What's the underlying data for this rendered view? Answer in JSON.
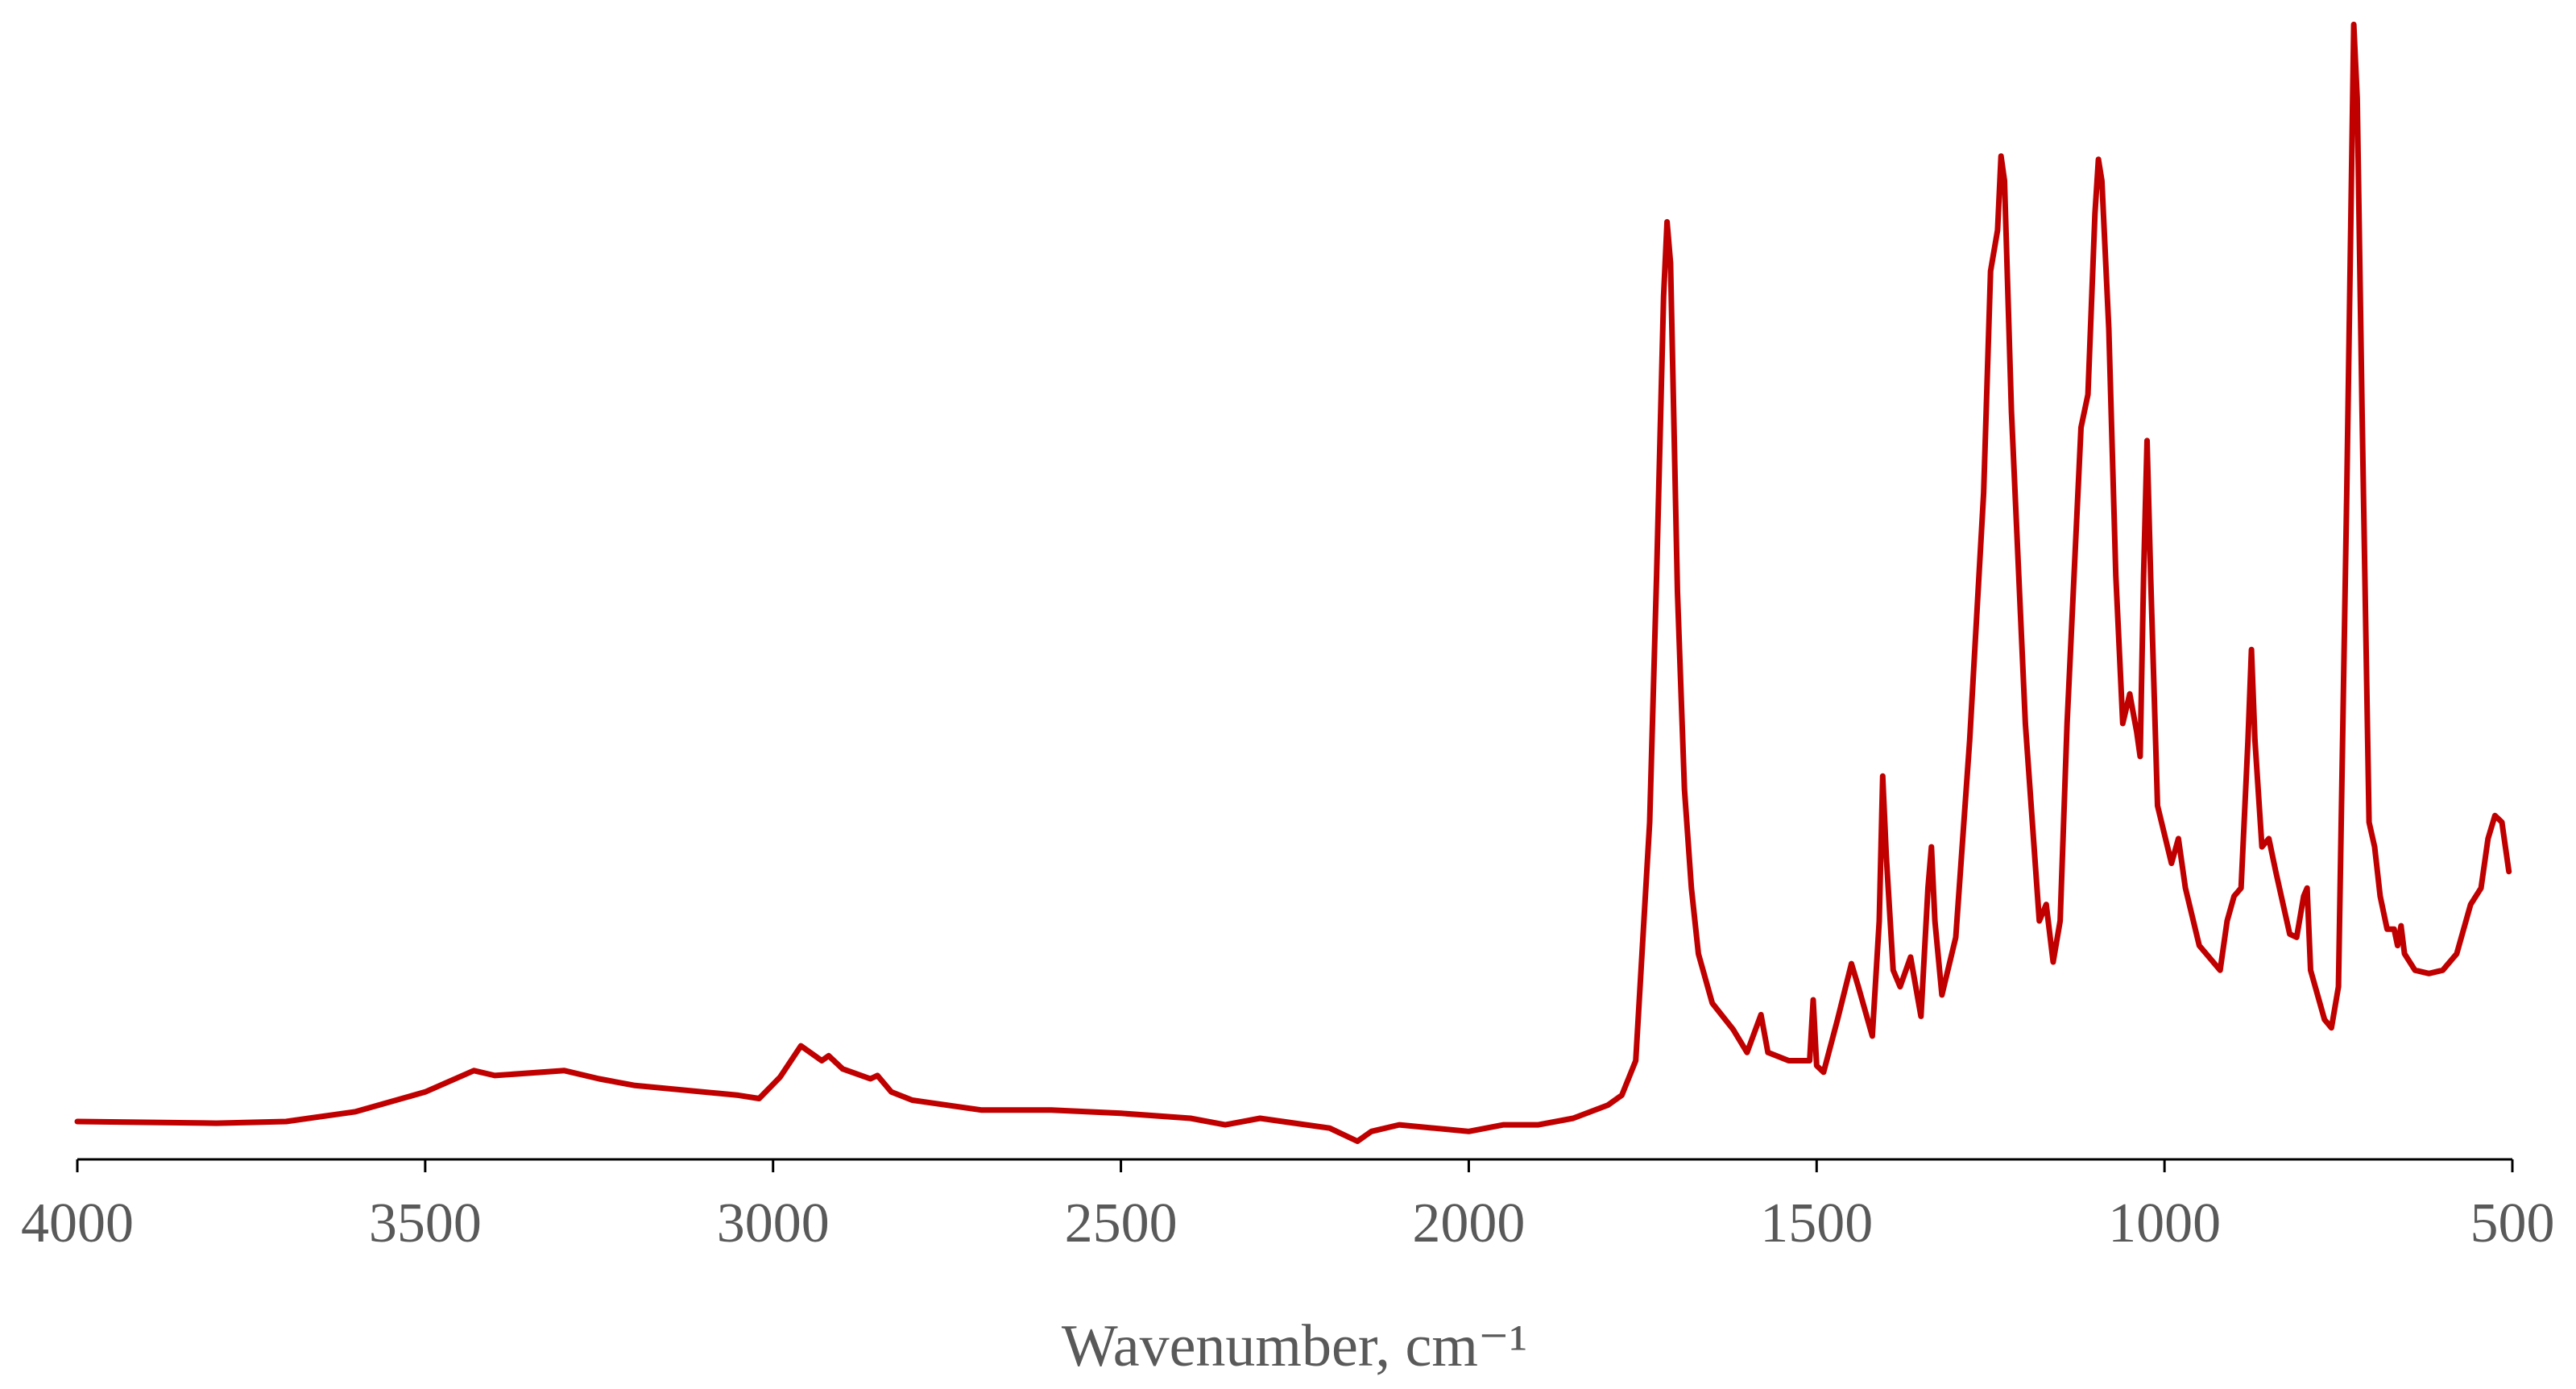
{
  "chart_data": {
    "type": "line",
    "x_label": "Wavenumber, cm⁻¹",
    "xlim": [
      4000,
      500
    ],
    "xticks": [
      4000,
      3500,
      3000,
      2500,
      2000,
      1500,
      1000,
      500
    ],
    "ylim": [
      0,
      700
    ],
    "grid": false,
    "series": [
      {
        "color": "#c00000",
        "x": [
          4000,
          3800,
          3700,
          3600,
          3500,
          3430,
          3400,
          3300,
          3250,
          3200,
          3100,
          3050,
          3020,
          2990,
          2960,
          2930,
          2920,
          2900,
          2860,
          2850,
          2830,
          2800,
          2700,
          2600,
          2500,
          2400,
          2350,
          2300,
          2250,
          2200,
          2160,
          2140,
          2100,
          2050,
          2000,
          1950,
          1900,
          1850,
          1800,
          1780,
          1760,
          1740,
          1730,
          1720,
          1715,
          1710,
          1700,
          1690,
          1680,
          1670,
          1650,
          1620,
          1600,
          1580,
          1570,
          1540,
          1510,
          1505,
          1500,
          1490,
          1470,
          1450,
          1440,
          1420,
          1410,
          1405,
          1400,
          1390,
          1380,
          1365,
          1350,
          1340,
          1335,
          1330,
          1320,
          1300,
          1280,
          1260,
          1250,
          1240,
          1235,
          1230,
          1220,
          1200,
          1180,
          1170,
          1160,
          1150,
          1140,
          1120,
          1110,
          1100,
          1095,
          1090,
          1080,
          1070,
          1060,
          1050,
          1040,
          1035,
          1030,
          1025,
          1020,
          1010,
          990,
          980,
          970,
          950,
          920,
          910,
          900,
          890,
          880,
          875,
          870,
          860,
          850,
          840,
          820,
          810,
          800,
          795,
          790,
          770,
          760,
          750,
          738,
          728,
          723,
          716,
          706,
          698,
          690,
          680,
          670,
          665,
          660,
          655,
          640,
          620,
          600,
          580,
          560,
          545,
          535,
          525,
          515,
          505
        ],
        "values": [
          23,
          22,
          23,
          29,
          41,
          54,
          51,
          54,
          49,
          45,
          41,
          39,
          37,
          50,
          69,
          60,
          63,
          55,
          49,
          51,
          41,
          36,
          30,
          30,
          28,
          25,
          21,
          25,
          22,
          19,
          11,
          17,
          21,
          19,
          17,
          21,
          21,
          25,
          33,
          39,
          60,
          205,
          355,
          525,
          570,
          545,
          345,
          225,
          165,
          125,
          95,
          79,
          65,
          88,
          65,
          60,
          60,
          97,
          57,
          53,
          85,
          119,
          105,
          75,
          145,
          233,
          185,
          115,
          105,
          123,
          87,
          165,
          190,
          145,
          100,
          135,
          255,
          405,
          540,
          565,
          610,
          595,
          455,
          265,
          145,
          155,
          120,
          145,
          265,
          445,
          465,
          575,
          608,
          595,
          505,
          355,
          265,
          283,
          260,
          245,
          355,
          437,
          355,
          215,
          180,
          195,
          165,
          130,
          115,
          145,
          160,
          165,
          255,
          310,
          255,
          190,
          195,
          175,
          137,
          135,
          160,
          165,
          115,
          85,
          80,
          105,
          405,
          690,
          645,
          455,
          205,
          190,
          160,
          140,
          140,
          130,
          142,
          125,
          115,
          113,
          115,
          125,
          155,
          165,
          195,
          209,
          205,
          175
        ]
      }
    ]
  }
}
